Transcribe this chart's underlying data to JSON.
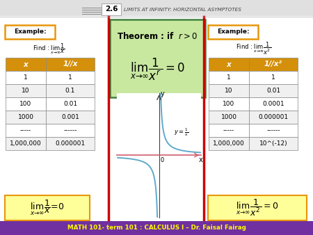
{
  "title_num": "2.6",
  "title_text": "LIMITS AT INFINITY: HORIZONTAL ASYMPTOTES",
  "bottom_bar_text": "MATH 101- term 101 : CALCULUS I – Dr. Faisal Fairag",
  "bottom_bar_color": "#7030a0",
  "bottom_bar_text_color": "#ffff00",
  "header_bg": "#e0e0e0",
  "red_line_color": "#cc0000",
  "orange_color": "#e8960a",
  "theorem_bg": "#c8e8a0",
  "theorem_border": "#408040",
  "table_header_color": "#d4900a",
  "table_header_text": "#ffffff",
  "table_row_bg1": "#ffffff",
  "table_row_bg2": "#f4f4f4",
  "table_border": "#888888",
  "table1_rows": [
    [
      "x",
      "1/\nx"
    ],
    [
      "1",
      "1"
    ],
    [
      "10",
      "0.1"
    ],
    [
      "100",
      "0.01"
    ],
    [
      "1000",
      "0.001"
    ],
    [
      "-----",
      "------"
    ],
    [
      "1,000,000",
      "0.000001"
    ]
  ],
  "table2_rows": [
    [
      "x",
      "1/\nx²"
    ],
    [
      "1",
      "1"
    ],
    [
      "10",
      "0.01"
    ],
    [
      "100",
      "0.0001"
    ],
    [
      "1000",
      "0.000001"
    ],
    [
      "-----",
      "------"
    ],
    [
      "1,000,000",
      "10^(-12)"
    ]
  ],
  "curve_color": "#60aacc",
  "xaxis_color": "#d06070",
  "yaxis_color": "#404040",
  "bg_color": "#ffffff",
  "example_label_color": "#000000"
}
